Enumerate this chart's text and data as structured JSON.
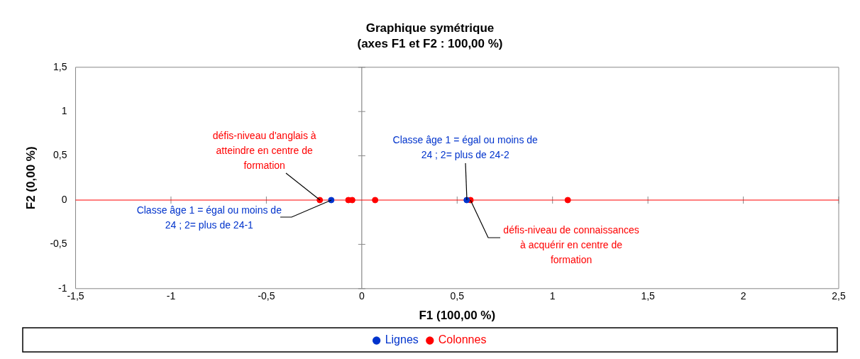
{
  "chart_data": {
    "type": "scatter",
    "title": "Graphique symétrique",
    "subtitle": "(axes F1 et F2 : 100,00 %)",
    "xlabel": "F1 (100,00 %)",
    "ylabel": "F2 (0,00 %)",
    "series": [
      {
        "name": "Lignes",
        "color": "#0033cc",
        "x": [
          -0.16,
          0.55
        ],
        "values": [
          0,
          0
        ]
      },
      {
        "name": "Colonnes",
        "color": "#ff0000",
        "x": [
          -0.22,
          -0.07,
          -0.05,
          0.07,
          0.57,
          1.08
        ],
        "values": [
          0,
          0,
          0,
          0,
          0,
          0
        ]
      }
    ],
    "xlim": [
      -1.5,
      2.5
    ],
    "xticks": [
      {
        "value": -1.5,
        "label": "-1,5"
      },
      {
        "value": -1,
        "label": "-1"
      },
      {
        "value": -0.5,
        "label": "-0,5"
      },
      {
        "value": 0,
        "label": "0"
      },
      {
        "value": 0.5,
        "label": "0,5"
      },
      {
        "value": 1,
        "label": "1"
      },
      {
        "value": 1.5,
        "label": "1,5"
      },
      {
        "value": 2,
        "label": "2"
      },
      {
        "value": 2.5,
        "label": "2,5"
      }
    ],
    "ylim": [
      -1,
      1.5
    ],
    "yticks": [
      {
        "value": -1,
        "label": "-1"
      },
      {
        "value": -0.5,
        "label": "-0,5"
      },
      {
        "value": 0,
        "label": "0"
      },
      {
        "value": 0.5,
        "label": "0,5"
      },
      {
        "value": 1,
        "label": "1"
      },
      {
        "value": 1.5,
        "label": "1,5"
      }
    ],
    "ref_lines": [
      {
        "axis": "x",
        "value": 0,
        "label": null,
        "color": "#888888"
      },
      {
        "axis": "y",
        "value": 0,
        "label": null,
        "color": "#ff0000"
      }
    ],
    "annotations": [
      {
        "text": "défis-niveau d'anglais à atteindre en centre de formation",
        "x": -0.22,
        "y": 0
      },
      {
        "text": "Classe âge 1 = égal ou moins de 24 ;  2=  plus de 24-1",
        "x": -0.16,
        "y": 0
      },
      {
        "text": "Classe âge 1 = égal ou moins de 24 ;  2=  plus de 24-2",
        "x": 0.55,
        "y": 0
      },
      {
        "text": "défis-niveau de connaissances à acquérir en centre de formation",
        "x": 0.57,
        "y": 0
      }
    ],
    "grid": false,
    "legend": "bottom",
    "marker": "circle"
  }
}
